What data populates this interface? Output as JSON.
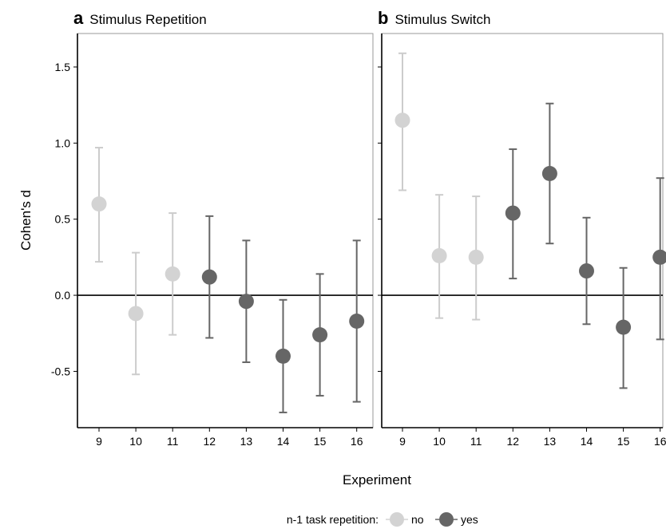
{
  "chart_data": {
    "type": "scatter",
    "xlabel": "Experiment",
    "ylabel": "Cohen's d",
    "ylim": [
      -0.87,
      1.72
    ],
    "yticks": [
      1.5,
      1.0,
      0.5,
      0.0,
      -0.5
    ],
    "ytick_labels": [
      "1.5",
      "1.0",
      "0.5",
      "0.0",
      "-0.5"
    ],
    "categories": [
      "9",
      "10",
      "11",
      "12",
      "13",
      "14",
      "15",
      "16"
    ],
    "reference_line": 0,
    "grid": false,
    "legend": {
      "title": "n-1 task repetition:",
      "placement": "bottom",
      "items": [
        {
          "label": "no",
          "color": "#d3d3d3"
        },
        {
          "label": "yes",
          "color": "#666666"
        }
      ]
    },
    "colors": {
      "no": "#d3d3d3",
      "yes": "#666666",
      "no_bar": "#cccccc",
      "yes_bar": "#666666"
    },
    "panels": [
      {
        "letter": "a",
        "title": "Stimulus Repetition",
        "points": [
          {
            "x": "9",
            "y": 0.6,
            "low": 0.22,
            "high": 0.97,
            "group": "no"
          },
          {
            "x": "10",
            "y": -0.12,
            "low": -0.52,
            "high": 0.28,
            "group": "no"
          },
          {
            "x": "11",
            "y": 0.14,
            "low": -0.26,
            "high": 0.54,
            "group": "no"
          },
          {
            "x": "12",
            "y": 0.12,
            "low": -0.28,
            "high": 0.52,
            "group": "yes"
          },
          {
            "x": "13",
            "y": -0.04,
            "low": -0.44,
            "high": 0.36,
            "group": "yes"
          },
          {
            "x": "14",
            "y": -0.4,
            "low": -0.77,
            "high": -0.03,
            "group": "yes"
          },
          {
            "x": "15",
            "y": -0.26,
            "low": -0.66,
            "high": 0.14,
            "group": "yes"
          },
          {
            "x": "16",
            "y": -0.17,
            "low": -0.7,
            "high": 0.36,
            "group": "yes"
          }
        ]
      },
      {
        "letter": "b",
        "title": "Stimulus Switch",
        "points": [
          {
            "x": "9",
            "y": 1.15,
            "low": 0.69,
            "high": 1.59,
            "group": "no"
          },
          {
            "x": "10",
            "y": 0.26,
            "low": -0.15,
            "high": 0.66,
            "group": "no"
          },
          {
            "x": "11",
            "y": 0.25,
            "low": -0.16,
            "high": 0.65,
            "group": "no"
          },
          {
            "x": "12",
            "y": 0.54,
            "low": 0.11,
            "high": 0.96,
            "group": "yes"
          },
          {
            "x": "13",
            "y": 0.8,
            "low": 0.34,
            "high": 1.26,
            "group": "yes"
          },
          {
            "x": "14",
            "y": 0.16,
            "low": -0.19,
            "high": 0.51,
            "group": "yes"
          },
          {
            "x": "15",
            "y": -0.21,
            "low": -0.61,
            "high": 0.18,
            "group": "yes"
          },
          {
            "x": "16",
            "y": 0.25,
            "low": -0.29,
            "high": 0.77,
            "group": "yes"
          }
        ]
      }
    ]
  }
}
